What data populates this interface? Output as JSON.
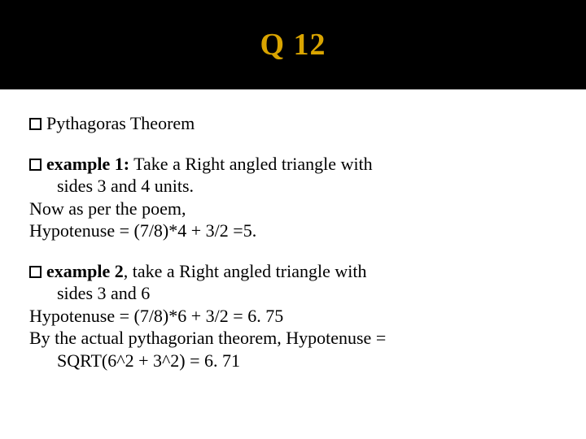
{
  "title_color": "#d9a400",
  "header": {
    "title": "Q 12"
  },
  "p1": {
    "line1": "Pythagoras Theorem"
  },
  "p2": {
    "label": "example 1:",
    "line1": " Take a Right angled triangle with",
    "line2": "sides 3 and 4 units.",
    "line3": "Now as per the poem,",
    "line4": "Hypotenuse = (7/8)*4 + 3/2 =5."
  },
  "p3": {
    "label": "example 2",
    "line1": ", take a Right angled triangle with",
    "line2": "sides 3 and 6",
    "line3": "Hypotenuse = (7/8)*6 + 3/2 = 6. 75",
    "line4": "By the actual pythagorian theorem, Hypotenuse =",
    "line5": "SQRT(6^2 + 3^2) = 6. 71"
  }
}
